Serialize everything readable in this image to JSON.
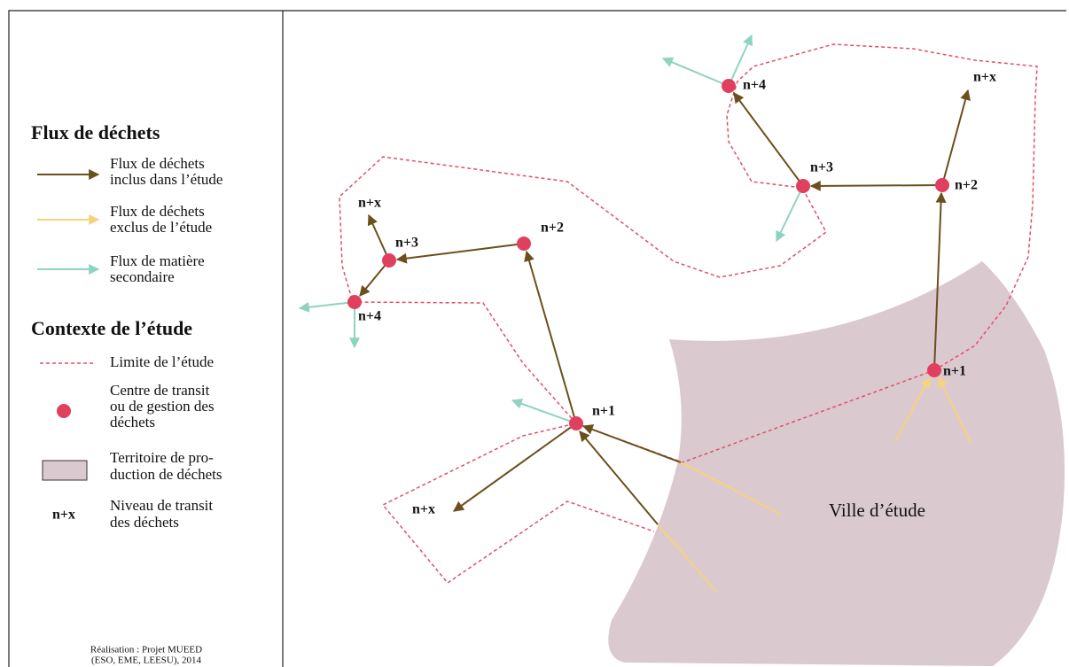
{
  "legend": {
    "sections": [
      {
        "title": "Flux de déchets",
        "items": [
          {
            "lines": [
              "Flux de déchets",
              "inclus dans l’étude"
            ]
          },
          {
            "lines": [
              "Flux de déchets",
              "exclus de l’étude"
            ]
          },
          {
            "lines": [
              "Flux de matière",
              "secondaire"
            ]
          }
        ]
      },
      {
        "title": "Contexte de l’étude",
        "items": [
          {
            "lines": [
              "Limite de l’étude"
            ]
          },
          {
            "lines": [
              "Centre de transit",
              "ou de gestion des",
              "déchets"
            ]
          },
          {
            "lines": [
              "Territoire de pro-",
              "duction de déchets"
            ]
          },
          {
            "symbol": "n+x",
            "lines": [
              "Niveau de transit",
              "des déchets"
            ]
          }
        ]
      }
    ]
  },
  "map": {
    "nodes": [
      {
        "label": "n+1"
      },
      {
        "label": "n+2"
      },
      {
        "label": "n+3"
      },
      {
        "label": "n+4"
      },
      {
        "label": "n+x"
      },
      {
        "label": "n+x"
      },
      {
        "label": "n+1"
      },
      {
        "label": "n+2"
      },
      {
        "label": "n+3"
      },
      {
        "label": "n+4"
      },
      {
        "label": "n+x"
      }
    ],
    "city": "Ville d’étude"
  },
  "credit": [
    "Réalisation : Projet MUEED",
    "(ESO, EME, LEESU), 2014"
  ]
}
